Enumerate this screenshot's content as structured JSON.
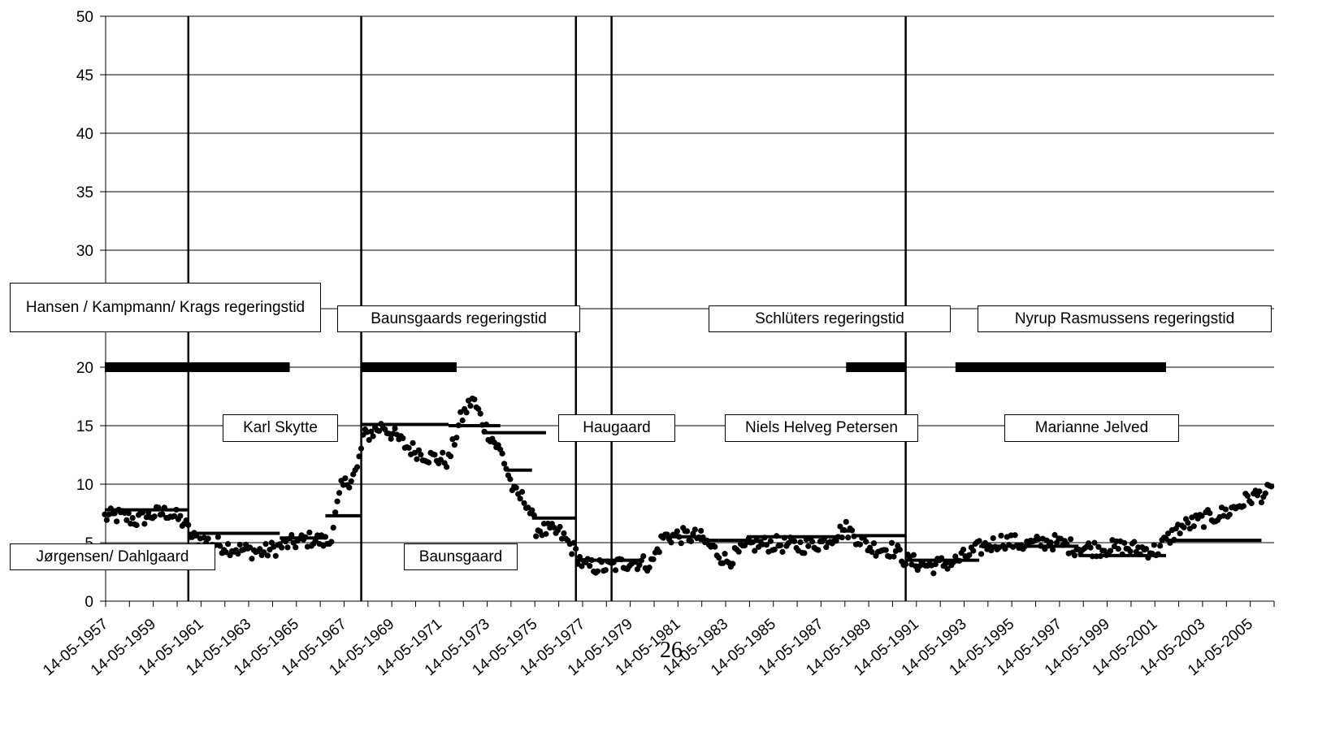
{
  "page_number": "26",
  "chart_data": {
    "type": "scatter",
    "y_ticks": [
      "0",
      "5",
      "10",
      "15",
      "20",
      "25",
      "30",
      "35",
      "40",
      "45",
      "50"
    ],
    "ylim": [
      0,
      50
    ],
    "x_tick_labels": [
      "14-05-1957",
      "14-05-1959",
      "14-05-1961",
      "14-05-1963",
      "14-05-1965",
      "14-05-1967",
      "14-05-1969",
      "14-05-1971",
      "14-05-1973",
      "14-05-1975",
      "14-05-1977",
      "14-05-1979",
      "14-05-1981",
      "14-05-1983",
      "14-05-1985",
      "14-05-1987",
      "14-05-1989",
      "14-05-1991",
      "14-05-1993",
      "14-05-1995",
      "14-05-1997",
      "14-05-1999",
      "14-05-2001",
      "14-05-2003",
      "14-05-2005"
    ],
    "xlim": [
      "1957-05-14",
      "2006-05-14"
    ],
    "grid": "horizontal",
    "vertical_lines": [
      "1960-11-01",
      "1968-02-01",
      "1977-02-01",
      "1978-08-01",
      "1990-12-01"
    ],
    "bold_bars_at_20": [
      {
        "start": "1957-05-01",
        "end": "1965-02-01"
      },
      {
        "start": "1968-02-01",
        "end": "1972-02-01"
      },
      {
        "start": "1988-06-01",
        "end": "1990-12-01"
      },
      {
        "start": "1993-01-01",
        "end": "2001-11-01"
      }
    ],
    "mean_levels": [
      {
        "start": "1957-05-01",
        "end": "1960-11-01",
        "value": 7.8
      },
      {
        "start": "1960-11-01",
        "end": "1964-09-01",
        "value": 5.8
      },
      {
        "start": "1964-09-01",
        "end": "1966-08-01",
        "value": 5.4
      },
      {
        "start": "1966-08-01",
        "end": "1968-02-01",
        "value": 7.3
      },
      {
        "start": "1968-02-01",
        "end": "1971-10-01",
        "value": 15.1
      },
      {
        "start": "1971-10-01",
        "end": "1973-12-01",
        "value": 15.0
      },
      {
        "start": "1973-03-01",
        "end": "1975-11-01",
        "value": 14.4
      },
      {
        "start": "1974-03-01",
        "end": "1975-04-01",
        "value": 11.2
      },
      {
        "start": "1975-04-01",
        "end": "1977-02-01",
        "value": 7.1
      },
      {
        "start": "1977-02-01",
        "end": "1979-10-01",
        "value": 3.5
      },
      {
        "start": "1980-10-01",
        "end": "1982-04-01",
        "value": 5.5
      },
      {
        "start": "1982-04-01",
        "end": "1984-04-01",
        "value": 5.2
      },
      {
        "start": "1984-04-01",
        "end": "1988-03-01",
        "value": 5.5
      },
      {
        "start": "1988-03-01",
        "end": "1988-10-01",
        "value": 6.0
      },
      {
        "start": "1988-10-01",
        "end": "1990-12-01",
        "value": 5.6
      },
      {
        "start": "1990-12-01",
        "end": "1994-01-01",
        "value": 3.5
      },
      {
        "start": "1994-01-01",
        "end": "1998-03-01",
        "value": 4.7
      },
      {
        "start": "1998-03-01",
        "end": "2001-11-01",
        "value": 3.9
      },
      {
        "start": "2001-11-01",
        "end": "2005-11-01",
        "value": 5.2
      }
    ],
    "annotations": {
      "hansen": "Hansen / Kampmann/ Krags regeringstid",
      "baunsgaards": "Baunsgaards regeringstid",
      "schluters": "Schlüters regeringstid",
      "nyrup": "Nyrup Rasmussens regeringstid",
      "karl_skytte": "Karl Skytte",
      "haugaard": "Haugaard",
      "niels_helveg": "Niels Helveg Petersen",
      "marianne_jelved": "Marianne Jelved",
      "jorgensen": "Jørgensen/ Dahlgaard",
      "baunsgaard": "Baunsgaard"
    },
    "scatter_trend": [
      [
        "1957-05-01",
        7.2
      ],
      [
        "1958-01-01",
        7.3
      ],
      [
        "1958-09-01",
        6.9
      ],
      [
        "1959-05-01",
        7.4
      ],
      [
        "1960-01-01",
        7.6
      ],
      [
        "1960-09-01",
        6.7
      ],
      [
        "1961-01-01",
        5.4
      ],
      [
        "1962-01-01",
        4.9
      ],
      [
        "1963-01-01",
        4.4
      ],
      [
        "1964-01-01",
        4.2
      ],
      [
        "1965-01-01",
        4.9
      ],
      [
        "1966-01-01",
        5.3
      ],
      [
        "1966-10-01",
        5.0
      ],
      [
        "1967-04-01",
        9.6
      ],
      [
        "1967-12-01",
        11.2
      ],
      [
        "1968-03-01",
        14.0
      ],
      [
        "1969-01-01",
        15.0
      ],
      [
        "1970-01-01",
        13.2
      ],
      [
        "1971-01-01",
        12.3
      ],
      [
        "1971-10-01",
        12.0
      ],
      [
        "1972-04-01",
        15.5
      ],
      [
        "1972-10-01",
        17.3
      ],
      [
        "1973-04-01",
        15.0
      ],
      [
        "1974-01-01",
        12.5
      ],
      [
        "1974-07-01",
        9.2
      ],
      [
        "1975-01-01",
        8.6
      ],
      [
        "1975-06-01",
        6.2
      ],
      [
        "1976-06-01",
        5.8
      ],
      [
        "1977-01-01",
        4.4
      ],
      [
        "1977-06-01",
        3.0
      ],
      [
        "1978-06-01",
        2.9
      ],
      [
        "1979-06-01",
        3.4
      ],
      [
        "1980-04-01",
        3.2
      ],
      [
        "1980-10-01",
        5.5
      ],
      [
        "1981-06-01",
        5.6
      ],
      [
        "1982-04-01",
        5.5
      ],
      [
        "1983-01-01",
        4.2
      ],
      [
        "1983-06-01",
        3.4
      ],
      [
        "1984-06-01",
        4.8
      ],
      [
        "1985-06-01",
        4.9
      ],
      [
        "1986-06-01",
        4.7
      ],
      [
        "1987-06-01",
        5.0
      ],
      [
        "1988-06-01",
        6.2
      ],
      [
        "1989-06-01",
        4.6
      ],
      [
        "1990-06-01",
        4.4
      ],
      [
        "1991-01-01",
        3.4
      ],
      [
        "1992-01-01",
        3.0
      ],
      [
        "1993-01-01",
        3.4
      ],
      [
        "1994-01-01",
        4.5
      ],
      [
        "1995-01-01",
        5.2
      ],
      [
        "1996-01-01",
        4.8
      ],
      [
        "1997-01-01",
        5.1
      ],
      [
        "1998-01-01",
        4.6
      ],
      [
        "1999-01-01",
        4.5
      ],
      [
        "2000-01-01",
        4.6
      ],
      [
        "2001-06-01",
        4.3
      ],
      [
        "2002-06-01",
        6.3
      ],
      [
        "2003-06-01",
        7.0
      ],
      [
        "2004-06-01",
        7.6
      ],
      [
        "2005-06-01",
        8.9
      ],
      [
        "2006-05-01",
        9.4
      ]
    ]
  }
}
